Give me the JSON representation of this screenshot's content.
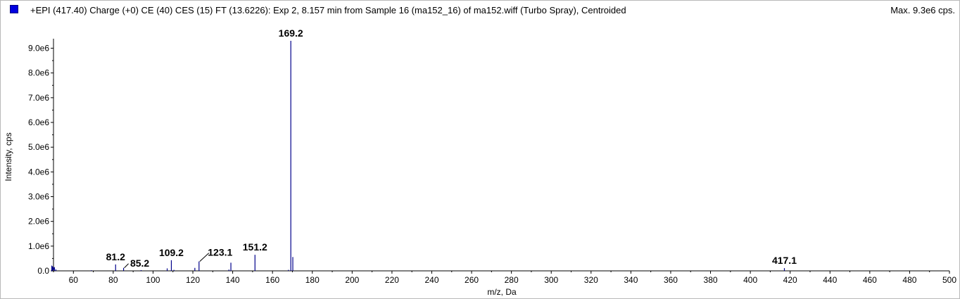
{
  "header": {
    "title": "+EPI (417.40) Charge (+0) CE (40) CES (15) FT (13.6226): Exp 2, 8.157 min from Sample 16 (ma152_16) of ma152.wiff (Turbo Spray), Centroided",
    "max_label": "Max. 9.3e6 cps."
  },
  "colors": {
    "series": "#00008b",
    "legend": "#0000e0",
    "axis": "#000000"
  },
  "chart_data": {
    "type": "bar",
    "title": "+EPI (417.40) Charge (+0) CE (40) CES (15) FT (13.6226): Exp 2, 8.157 min from Sample 16 (ma152_16) of ma152.wiff (Turbo Spray), Centroided",
    "xlabel": "m/z, Da",
    "ylabel": "Intensity, cps",
    "xlim": [
      50,
      500
    ],
    "ylim": [
      0,
      9300000
    ],
    "x_ticks": [
      60,
      80,
      100,
      120,
      140,
      160,
      180,
      200,
      220,
      240,
      260,
      280,
      300,
      320,
      340,
      360,
      380,
      400,
      420,
      440,
      460,
      480,
      500
    ],
    "y_ticks": [
      0,
      1000000,
      2000000,
      3000000,
      4000000,
      5000000,
      6000000,
      7000000,
      8000000,
      9000000
    ],
    "y_tick_labels": [
      "0.0",
      "1.0e6",
      "2.0e6",
      "3.0e6",
      "4.0e6",
      "5.0e6",
      "6.0e6",
      "7.0e6",
      "8.0e6",
      "9.0e6"
    ],
    "grid": false,
    "peaks": [
      {
        "mz": 50.5,
        "intensity": 150000
      },
      {
        "mz": 51.2,
        "intensity": 60000
      },
      {
        "mz": 69.0,
        "intensity": 25000
      },
      {
        "mz": 81.2,
        "intensity": 260000
      },
      {
        "mz": 85.2,
        "intensity": 120000
      },
      {
        "mz": 94.0,
        "intensity": 30000
      },
      {
        "mz": 107.1,
        "intensity": 100000
      },
      {
        "mz": 109.2,
        "intensity": 430000
      },
      {
        "mz": 110.5,
        "intensity": 40000
      },
      {
        "mz": 121.0,
        "intensity": 120000
      },
      {
        "mz": 123.1,
        "intensity": 380000
      },
      {
        "mz": 138.1,
        "intensity": 50000
      },
      {
        "mz": 139.1,
        "intensity": 330000
      },
      {
        "mz": 151.2,
        "intensity": 650000
      },
      {
        "mz": 168.0,
        "intensity": 40000
      },
      {
        "mz": 169.2,
        "intensity": 9300000
      },
      {
        "mz": 170.2,
        "intensity": 560000
      },
      {
        "mz": 417.1,
        "intensity": 110000
      }
    ],
    "labels": [
      {
        "text": "169.2",
        "mz": 169.2,
        "intensity": 9300000
      },
      {
        "text": "151.2",
        "mz": 151.2,
        "intensity": 650000
      },
      {
        "text": "123.1",
        "mz": 123.1,
        "intensity": 380000
      },
      {
        "text": "109.2",
        "mz": 109.2,
        "intensity": 430000
      },
      {
        "text": "85.2",
        "mz": 85.2,
        "intensity": 120000
      },
      {
        "text": "81.2",
        "mz": 81.2,
        "intensity": 260000
      },
      {
        "text": "417.1",
        "mz": 417.1,
        "intensity": 110000
      }
    ]
  }
}
